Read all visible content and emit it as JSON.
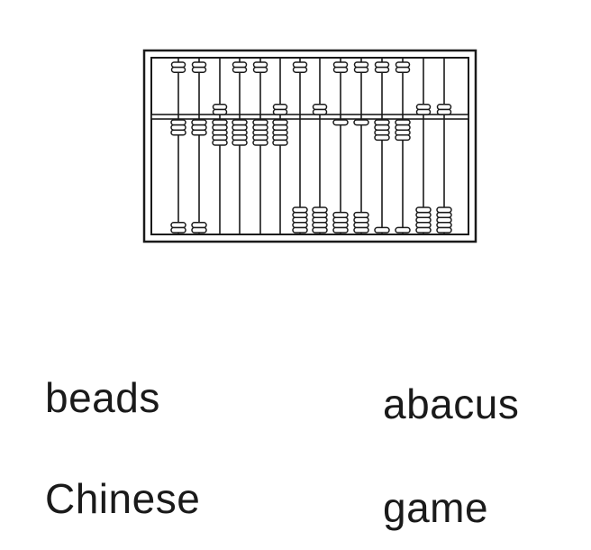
{
  "illustration": {
    "subject": "abacus",
    "rods": 14,
    "upper_beads_per_rod": 2,
    "lower_beads_per_rod": 5,
    "line_color": "#1a1a1a",
    "background": "#ffffff"
  },
  "word_bank": [
    {
      "text": "beads"
    },
    {
      "text": "abacus"
    },
    {
      "text": "Chinese"
    },
    {
      "text": "game"
    }
  ]
}
